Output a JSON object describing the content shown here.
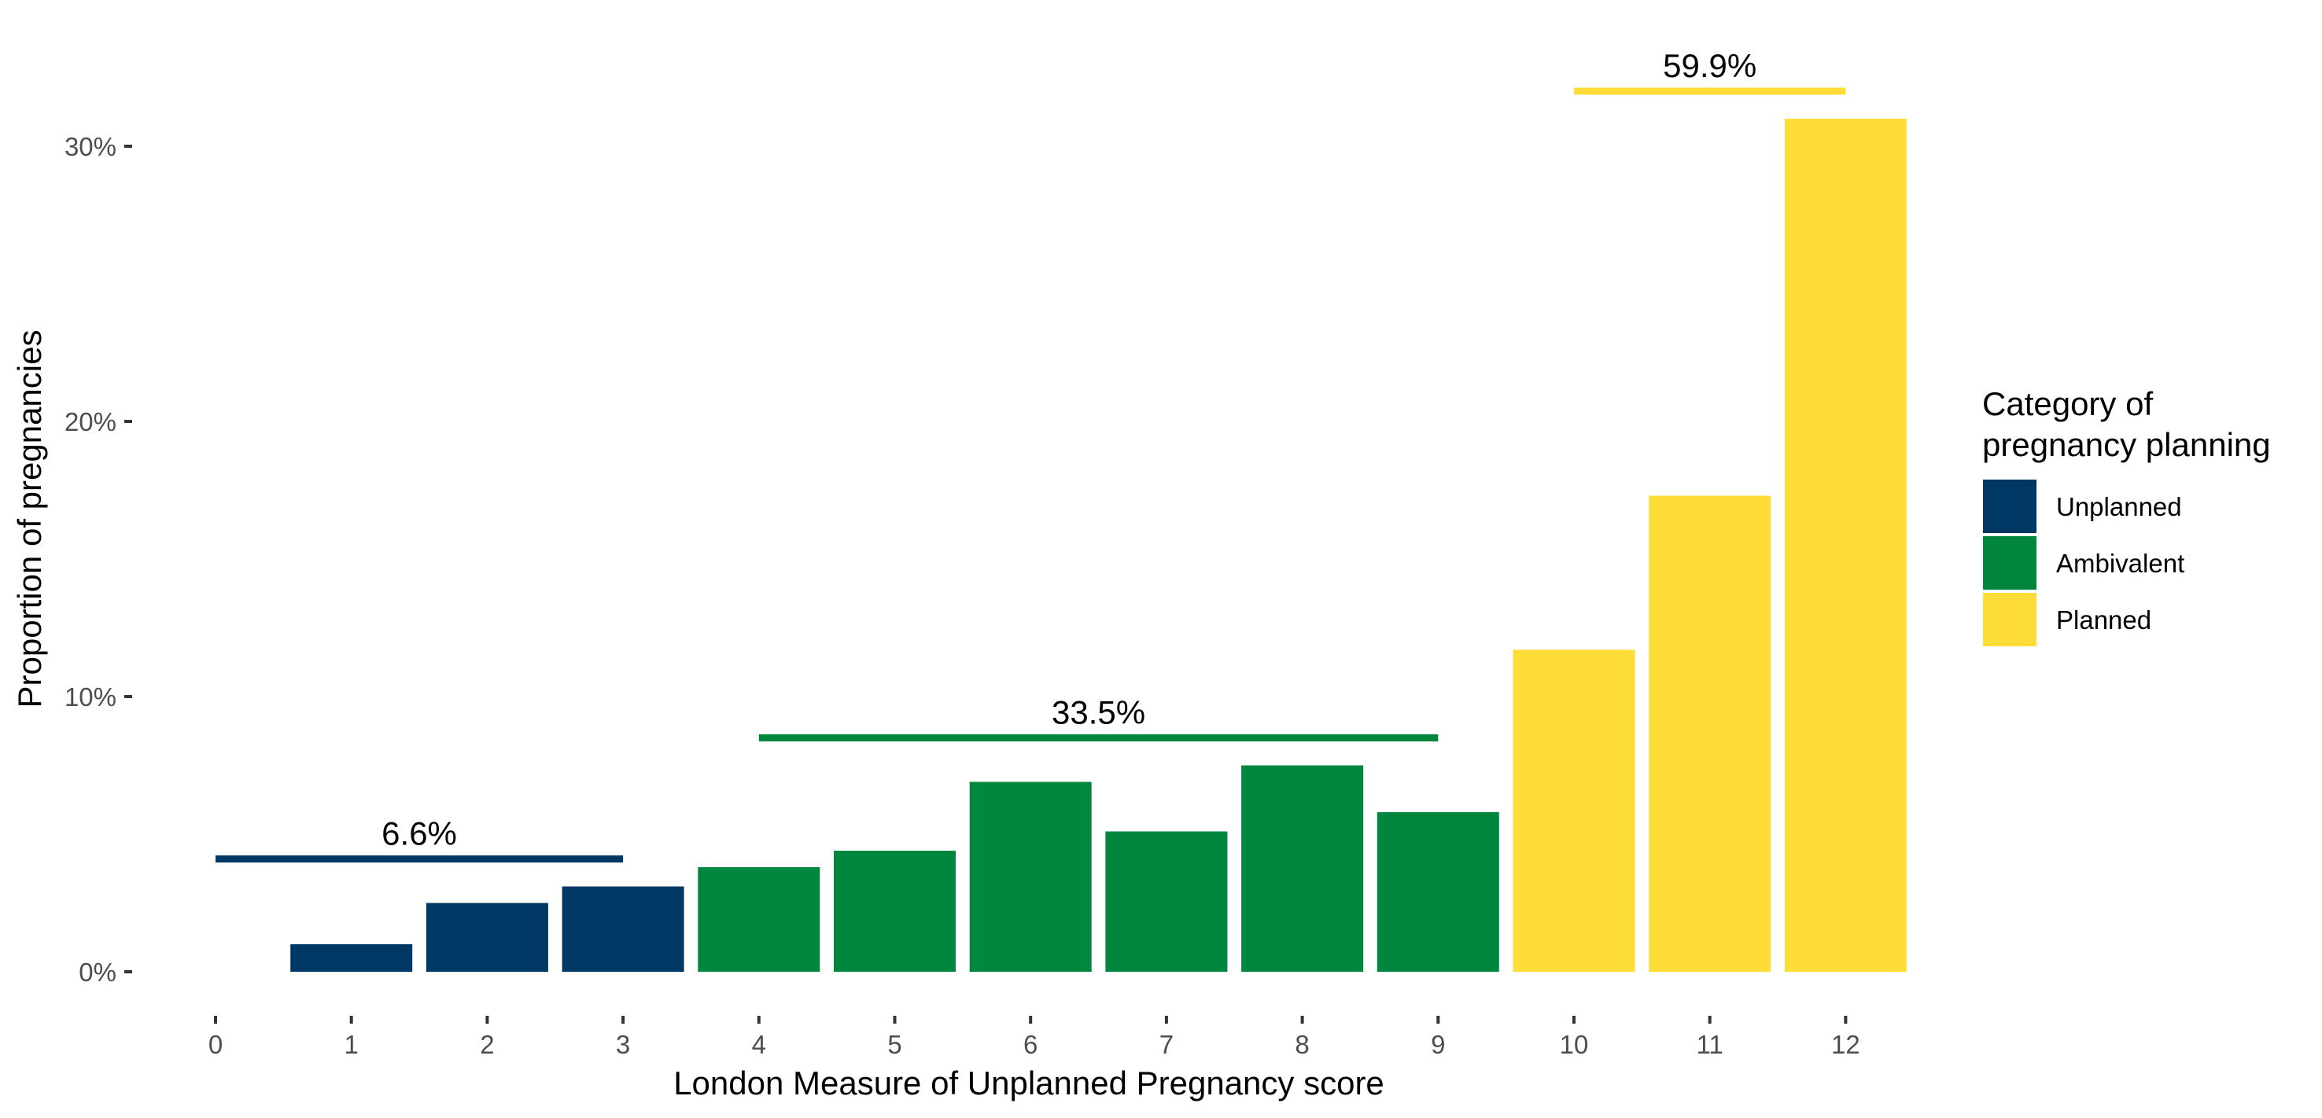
{
  "chart_data": {
    "type": "bar",
    "xlabel": "London Measure of Unplanned Pregnancy score",
    "ylabel": "Proportion of pregnancies",
    "x": [
      0,
      1,
      2,
      3,
      4,
      5,
      6,
      7,
      8,
      9,
      10,
      11,
      12
    ],
    "x_tick_labels": [
      "0",
      "1",
      "2",
      "3",
      "4",
      "5",
      "6",
      "7",
      "8",
      "9",
      "10",
      "11",
      "12"
    ],
    "values": [
      0,
      1.0,
      2.5,
      3.1,
      3.8,
      4.4,
      6.9,
      5.1,
      7.5,
      5.8,
      11.7,
      17.3,
      31.0
    ],
    "bar_categories": [
      "Unplanned",
      "Unplanned",
      "Unplanned",
      "Unplanned",
      "Ambivalent",
      "Ambivalent",
      "Ambivalent",
      "Ambivalent",
      "Ambivalent",
      "Ambivalent",
      "Planned",
      "Planned",
      "Planned"
    ],
    "y_ticks": [
      0,
      10,
      20,
      30
    ],
    "y_tick_labels": [
      "0%",
      "10%",
      "20%",
      "30%"
    ],
    "ylim": [
      0,
      32
    ],
    "grid": false,
    "legend": {
      "title": "Category of pregnancy planning",
      "title_lines": [
        "Category of",
        "pregnancy planning"
      ],
      "placement": "right",
      "entries": [
        {
          "name": "Unplanned",
          "color": "#003865"
        },
        {
          "name": "Ambivalent",
          "color": "#00873E"
        },
        {
          "name": "Planned",
          "color": "#FEDD38"
        }
      ]
    },
    "annotations": [
      {
        "label": "6.6%",
        "x_start": 0,
        "x_end": 3,
        "y": 4.1,
        "category": "Unplanned"
      },
      {
        "label": "33.5%",
        "x_start": 4,
        "x_end": 9,
        "y": 8.5,
        "category": "Ambivalent"
      },
      {
        "label": "59.9%",
        "x_start": 10,
        "x_end": 12,
        "y": 32.0,
        "category": "Planned"
      }
    ]
  }
}
